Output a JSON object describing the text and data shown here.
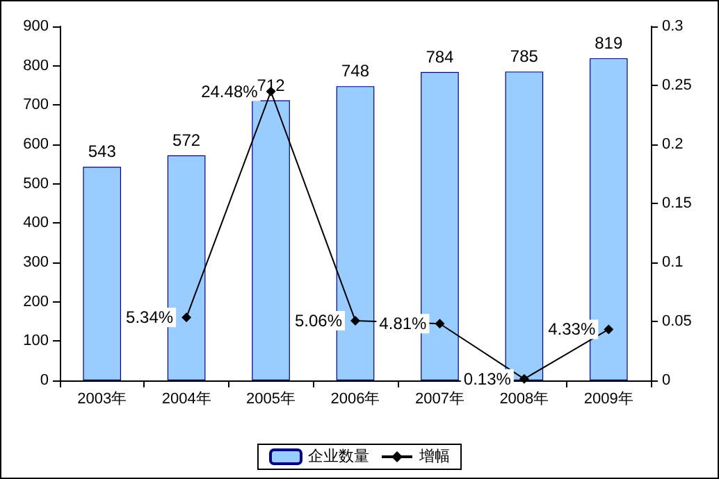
{
  "chart_data": {
    "type": "bar",
    "categories": [
      "2003年",
      "2004年",
      "2005年",
      "2006年",
      "2007年",
      "2008年",
      "2009年"
    ],
    "series": [
      {
        "name": "企业数量",
        "color": "#99ccff",
        "values": [
          543,
          572,
          712,
          748,
          784,
          785,
          819
        ]
      },
      {
        "name": "增幅",
        "type": "line",
        "axis": "y2",
        "color": "#000000",
        "marker": "diamond",
        "values": [
          null,
          0.0534,
          0.2448,
          0.0506,
          0.0481,
          0.0013,
          0.0433
        ],
        "value_labels": [
          null,
          "5.34%",
          "24.48%",
          "5.06%",
          "4.81%",
          "0.13%",
          "4.33%"
        ]
      }
    ],
    "data_labels": true,
    "ylim": [
      0,
      900
    ],
    "yticks": [
      0,
      100,
      200,
      300,
      400,
      500,
      600,
      700,
      800,
      900
    ],
    "y2lim": [
      0,
      0.3
    ],
    "y2ticks": [
      0,
      0.05,
      0.1,
      0.15,
      0.2,
      0.25,
      0.3
    ],
    "grid": false,
    "legend": "bottom"
  }
}
